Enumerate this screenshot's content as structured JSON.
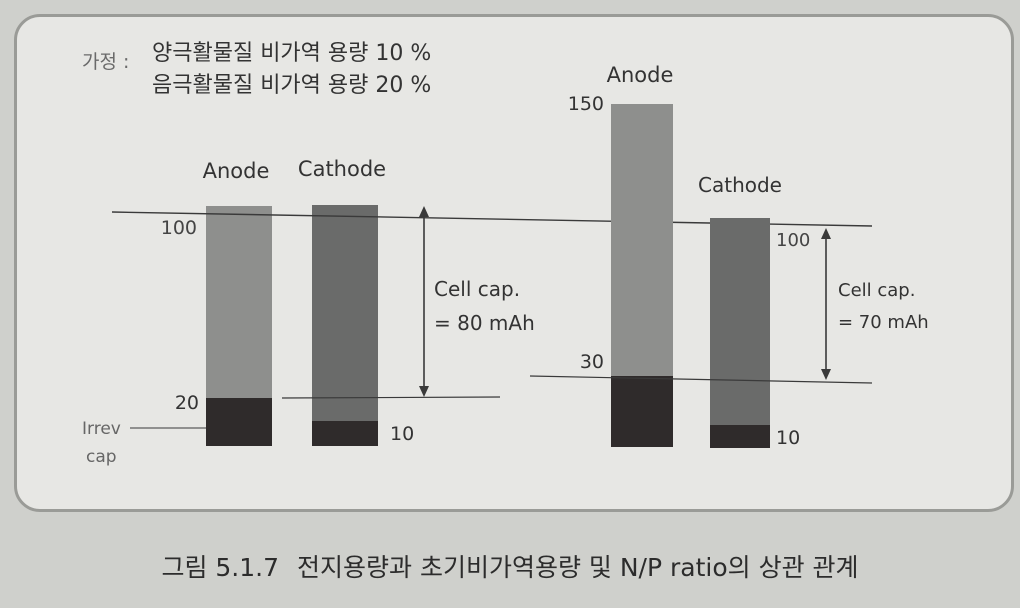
{
  "assumption": {
    "prefix": "가정 :",
    "line1": "양극활물질 비가역 용량 10 %",
    "line2": "음극활물질 비가역 용량 20 %"
  },
  "left_panel": {
    "anode_label": "Anode",
    "cathode_label": "Cathode",
    "anode_top_value": "100",
    "anode_irrev_value": "20",
    "cathode_irrev_value": "10",
    "cell_cap_line1": "Cell cap.",
    "cell_cap_line2": "= 80 mAh",
    "irrev_label_line1": "Irrev",
    "irrev_label_line2": "cap"
  },
  "right_panel": {
    "anode_label": "Anode",
    "cathode_label": "Cathode",
    "anode_top_value": "150",
    "anode_irrev_value": "30",
    "cathode_top_value": "100",
    "cathode_irrev_value": "10",
    "cell_cap_line1": "Cell cap.",
    "cell_cap_line2": "= 70 mAh"
  },
  "caption": {
    "figure_number": "그림 5.1.7",
    "text": "전지용량과 초기비가역용량 및 N/P ratio의 상관 관계"
  },
  "colors": {
    "anode_fill": "#8e8f8d",
    "cathode_fill": "#6a6b6a",
    "irrev_fill": "#2f2b2b",
    "line": "#3a3a3a",
    "text": "#333333"
  }
}
